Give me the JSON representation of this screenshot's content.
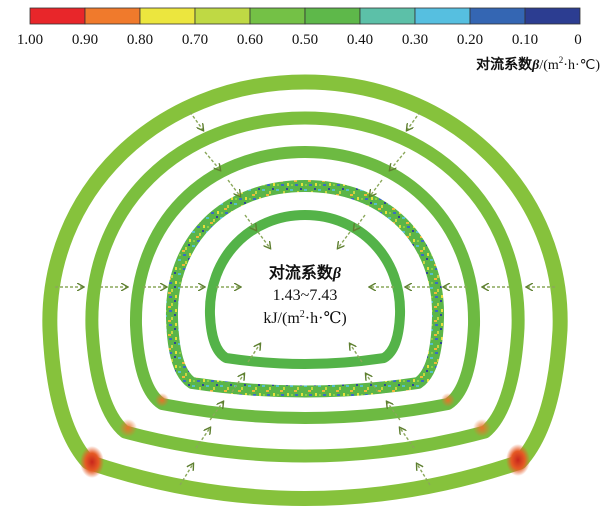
{
  "colorbar": {
    "colors": [
      "#e8262a",
      "#f07a2c",
      "#ece63e",
      "#bfd944",
      "#74c146",
      "#5eb84a",
      "#5cc0a8",
      "#56bfe0",
      "#3466b3",
      "#2c3d91"
    ],
    "ticks": [
      "1.00",
      "0.90",
      "0.80",
      "0.70",
      "0.60",
      "0.50",
      "0.40",
      "0.30",
      "0.20",
      "0.10",
      "0"
    ],
    "unit_prefix": "对流系数",
    "unit_symbol": "β",
    "unit_suffix": "/(m",
    "unit_sup": "2",
    "unit_tail": "·h·℃)"
  },
  "center_label": {
    "title_prefix": "对流系数",
    "title_symbol": "β",
    "range": "1.43~7.43",
    "unit_prefix": "kJ/(m",
    "unit_sup": "2",
    "unit_tail": "·h·℃)"
  },
  "ring_colors": {
    "outer": "#86c23c",
    "ring2": "#7cbf3e",
    "ring3": "#6dba42",
    "ring4": "#63b646",
    "inner": "#54b348",
    "hot_spot": "#d83a1f",
    "warm_spot": "#e98a2c",
    "arrow": "#6a8a3a"
  }
}
